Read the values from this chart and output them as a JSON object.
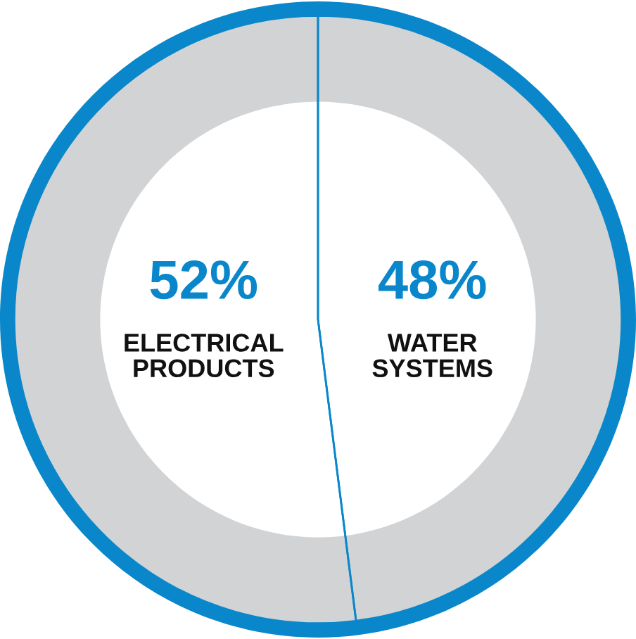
{
  "chart_data": {
    "type": "donut",
    "categories": [
      "ELECTRICAL PRODUCTS",
      "WATER SYSTEMS"
    ],
    "values": [
      52,
      48
    ],
    "colors": [
      "#d1d3d4",
      "#d1d3d4"
    ],
    "value_labels": [
      "52%",
      "48%"
    ]
  }
}
